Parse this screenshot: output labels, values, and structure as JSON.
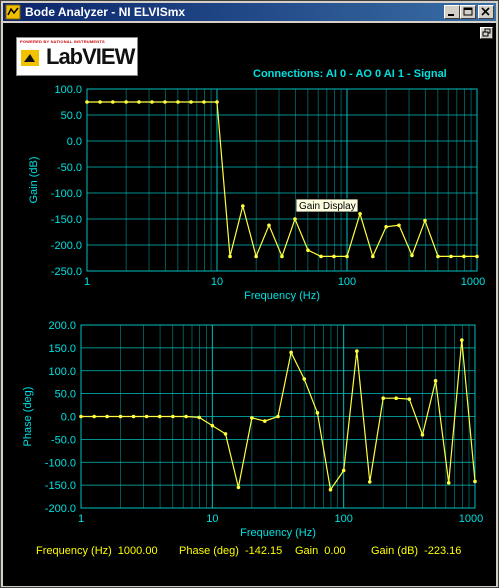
{
  "window": {
    "title": "Bode Analyzer - NI ELVISmx"
  },
  "logo": {
    "text": "LabVIEW",
    "powered_text": "POWERED BY NATIONAL INSTRUMENTS"
  },
  "connections": "Connections: AI 0 - AO 0   AI 1 - Signal",
  "tooltip": "Gain Display",
  "colors": {
    "grid": "#00c0c0",
    "trace": "#ffff40",
    "axis_text": "#00e0e0",
    "readout_text": "#ffff00",
    "background": "#000000"
  },
  "chart_data": [
    {
      "type": "line",
      "xlabel": "Frequency (Hz)",
      "ylabel": "Gain (dB)",
      "xscale": "log",
      "xlim": [
        1,
        1000
      ],
      "ylim": [
        -250,
        100
      ],
      "x_ticks": [
        "1",
        "10",
        "100",
        "1000"
      ],
      "y_ticks": [
        "100.0",
        "50.0",
        "0.0",
        "-50.0",
        "-100.0",
        "-150.0",
        "-200.0",
        "-250.0"
      ],
      "series": [
        {
          "x": [
            1,
            1.26,
            1.58,
            2,
            2.51,
            3.16,
            3.98,
            5.01,
            6.31,
            7.94,
            10,
            12.6,
            15.8,
            20,
            25.1,
            31.6,
            39.8,
            50.1,
            63.1,
            79.4,
            100,
            126,
            158,
            200,
            251,
            316,
            398,
            501,
            631,
            794,
            1000
          ],
          "values": [
            75,
            75,
            75,
            75,
            75,
            75,
            75,
            75,
            75,
            75,
            75,
            -222,
            -125,
            -222,
            -162,
            -222,
            -150,
            -210,
            -222,
            -222,
            -222,
            -140,
            -222,
            -165,
            -162,
            -220,
            -153,
            -222,
            -222,
            -222,
            -222
          ]
        }
      ]
    },
    {
      "type": "line",
      "xlabel": "Frequency (Hz)",
      "ylabel": "Phase (deg)",
      "xscale": "log",
      "xlim": [
        1,
        1000
      ],
      "ylim": [
        -200,
        200
      ],
      "x_ticks": [
        "1",
        "10",
        "100",
        "1000"
      ],
      "y_ticks": [
        "200.0",
        "150.0",
        "100.0",
        "50.0",
        "0.0",
        "-50.0",
        "-100.0",
        "-150.0",
        "-200.0"
      ],
      "series": [
        {
          "x": [
            1,
            1.26,
            1.58,
            2,
            2.51,
            3.16,
            3.98,
            5.01,
            6.31,
            7.94,
            10,
            12.6,
            15.8,
            20,
            25.1,
            31.6,
            39.8,
            50.1,
            63.1,
            79.4,
            100,
            126,
            158,
            200,
            251,
            316,
            398,
            501,
            631,
            794,
            1000
          ],
          "values": [
            0,
            0,
            0,
            0,
            0,
            0,
            0,
            0,
            0,
            -2,
            -20,
            -38,
            -155,
            -3,
            -10,
            0,
            140,
            82,
            8,
            -160,
            -118,
            143,
            -143,
            40,
            40,
            38,
            -40,
            78,
            -145,
            167,
            -142
          ]
        }
      ]
    }
  ],
  "readouts": [
    {
      "label": "Frequency (Hz)",
      "value": "1000.00"
    },
    {
      "label": "Phase (deg)",
      "value": "-142.15"
    },
    {
      "label": "Gain",
      "value": "0.00"
    },
    {
      "label": "Gain (dB)",
      "value": "-223.16"
    }
  ]
}
